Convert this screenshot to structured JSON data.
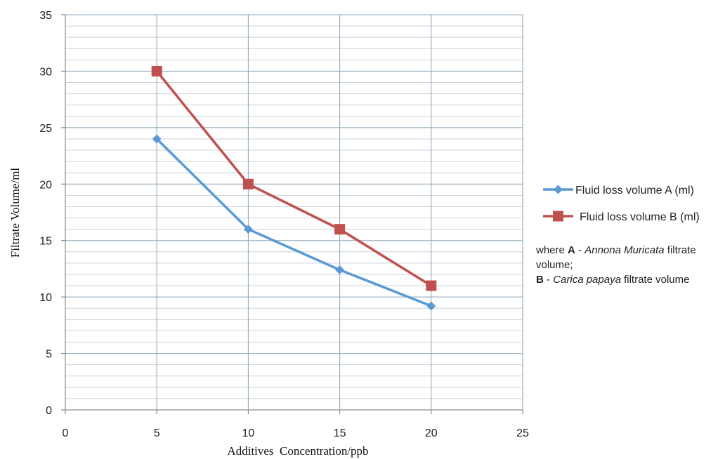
{
  "chart_data": {
    "type": "line",
    "title": "",
    "xlabel": "Additives  Concentration/ppb",
    "ylabel": "Filtrate Volume/ml",
    "xlim": [
      0,
      25
    ],
    "ylim": [
      0,
      35
    ],
    "x_ticks": [
      0,
      5,
      10,
      15,
      20,
      25
    ],
    "y_ticks": [
      0,
      5,
      10,
      15,
      20,
      25,
      30,
      35
    ],
    "grid": true,
    "minor_y_grid_step": 1,
    "legend_position": "right",
    "x": [
      5,
      10,
      15,
      20
    ],
    "series": [
      {
        "name": "Fluid loss volume A (ml)",
        "values": [
          24,
          16,
          12.4,
          9.2
        ],
        "color": "#5b9bd5",
        "marker": "diamond"
      },
      {
        "name": "Fluid loss volume B (ml)",
        "values": [
          30,
          20,
          16,
          11
        ],
        "color": "#c0504d",
        "marker": "square"
      }
    ]
  },
  "note": {
    "part1": "where ",
    "a_label": "A",
    "part2": " - ",
    "a_species": "Annona Muricata",
    "part3": " filtrate volume;",
    "b_label": "B",
    "part4": " - ",
    "b_species": "Carica papaya",
    "part5": " filtrate volume"
  }
}
